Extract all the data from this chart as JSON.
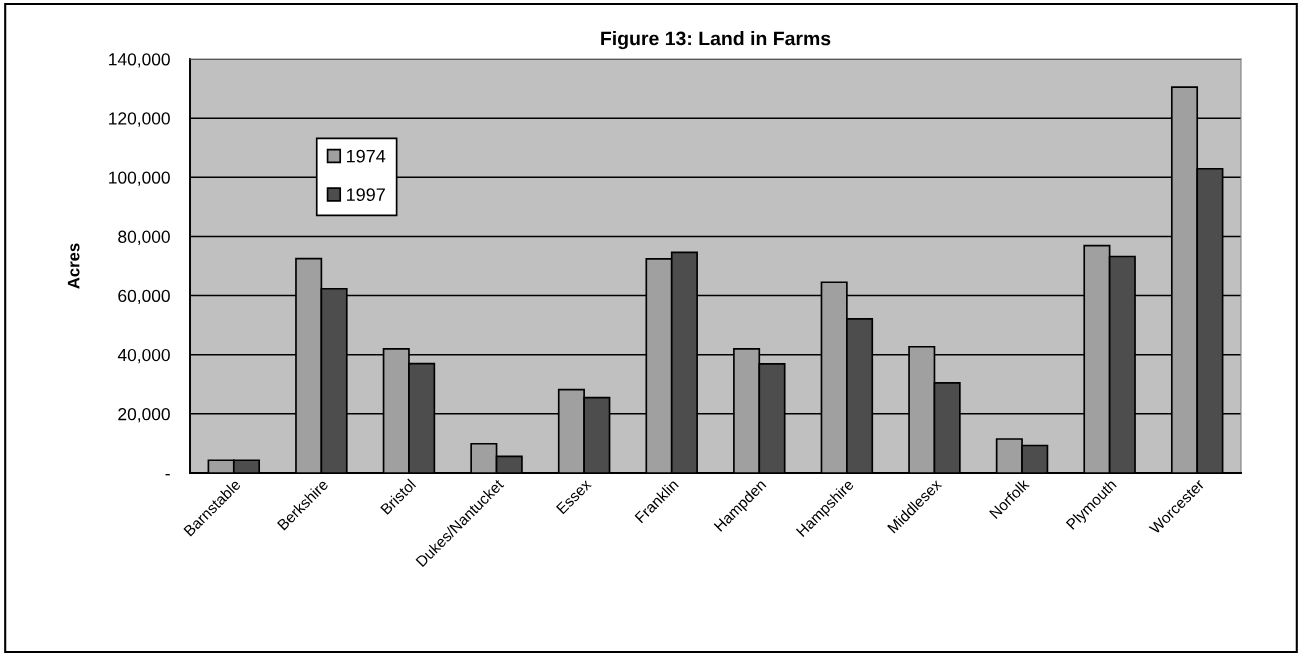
{
  "chart_data": {
    "type": "bar",
    "title": "Figure 13: Land in Farms",
    "ylabel": "Acres",
    "categories": [
      "Barnstable",
      "Berkshire",
      "Bristol",
      "Dukes/Nantucket",
      "Essex",
      "Franklin",
      "Hampden",
      "Hampshire",
      "Middlesex",
      "Norfolk",
      "Plymouth",
      "Worcester"
    ],
    "series": [
      {
        "name": "1974",
        "color": "#a0a0a0",
        "values": [
          4300,
          72500,
          42000,
          9900,
          28200,
          72400,
          42000,
          64500,
          42700,
          11500,
          76900,
          130500
        ]
      },
      {
        "name": "1997",
        "color": "#4d4d4d",
        "values": [
          4300,
          62300,
          37000,
          5600,
          25500,
          74600,
          36900,
          52100,
          30500,
          9300,
          73200,
          102900
        ]
      }
    ],
    "ylim": [
      0,
      140000
    ],
    "yticks": [
      {
        "value": 0,
        "label": "-"
      },
      {
        "value": 20000,
        "label": "20,000"
      },
      {
        "value": 40000,
        "label": "40,000"
      },
      {
        "value": 60000,
        "label": "60,000"
      },
      {
        "value": 80000,
        "label": "80,000"
      },
      {
        "value": 100000,
        "label": "100,000"
      },
      {
        "value": 120000,
        "label": "120,000"
      },
      {
        "value": 140000,
        "label": "140,000"
      }
    ],
    "grid": "y",
    "legend": "top left"
  }
}
